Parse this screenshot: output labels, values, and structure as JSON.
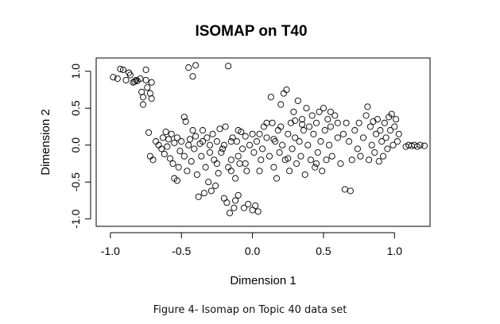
{
  "chart_data": {
    "type": "scatter",
    "title": "ISOMAP on T40",
    "xlabel": "Dimension 1",
    "ylabel": "Dimension 2",
    "xlim": [
      -1.1,
      1.25
    ],
    "ylim": [
      -1.1,
      1.18
    ],
    "xticks": [
      -1.0,
      -0.5,
      0.0,
      0.5,
      1.0
    ],
    "xtick_labels": [
      "-1.0",
      "-0.5",
      "0.0",
      "0.5",
      "1.0"
    ],
    "yticks": [
      -1.0,
      -0.5,
      0.0,
      0.5,
      1.0
    ],
    "ytick_labels": [
      "-1.0",
      "-0.5",
      "0.0",
      "0.5",
      "1.0"
    ],
    "grid": false,
    "marker": "open-circle",
    "marker_color": "#000000",
    "points": [
      [
        -0.98,
        0.92
      ],
      [
        -0.95,
        0.9
      ],
      [
        -0.93,
        1.03
      ],
      [
        -0.91,
        1.02
      ],
      [
        -0.89,
        0.88
      ],
      [
        -0.87,
        0.98
      ],
      [
        -0.86,
        0.95
      ],
      [
        -0.84,
        0.85
      ],
      [
        -0.83,
        0.86
      ],
      [
        -0.82,
        0.88
      ],
      [
        -0.81,
        0.87
      ],
      [
        -0.79,
        0.9
      ],
      [
        -0.78,
        0.72
      ],
      [
        -0.77,
        0.55
      ],
      [
        -0.77,
        0.65
      ],
      [
        -0.75,
        1.02
      ],
      [
        -0.75,
        0.88
      ],
      [
        -0.74,
        0.78
      ],
      [
        -0.72,
        0.7
      ],
      [
        -0.71,
        0.63
      ],
      [
        -0.71,
        0.85
      ],
      [
        -0.73,
        0.17
      ],
      [
        -0.72,
        -0.15
      ],
      [
        -0.7,
        -0.2
      ],
      [
        -0.68,
        0.05
      ],
      [
        -0.66,
        0.0
      ],
      [
        -0.64,
        -0.05
      ],
      [
        -0.63,
        0.1
      ],
      [
        -0.62,
        -0.12
      ],
      [
        -0.61,
        0.18
      ],
      [
        -0.6,
        -0.02
      ],
      [
        -0.59,
        0.08
      ],
      [
        -0.58,
        -0.18
      ],
      [
        -0.57,
        0.15
      ],
      [
        -0.56,
        -0.25
      ],
      [
        -0.55,
        0.03
      ],
      [
        -0.55,
        -0.45
      ],
      [
        -0.53,
        -0.48
      ],
      [
        -0.53,
        0.1
      ],
      [
        -0.52,
        -0.3
      ],
      [
        -0.51,
        -0.08
      ],
      [
        -0.5,
        0.05
      ],
      [
        -0.48,
        -0.15
      ],
      [
        -0.48,
        0.38
      ],
      [
        -0.47,
        0.32
      ],
      [
        -0.46,
        -0.35
      ],
      [
        -0.45,
        0.0
      ],
      [
        -0.44,
        0.08
      ],
      [
        -0.43,
        -0.22
      ],
      [
        -0.42,
        0.2
      ],
      [
        -0.41,
        -0.05
      ],
      [
        -0.4,
        0.12
      ],
      [
        -0.39,
        -0.4
      ],
      [
        -0.38,
        -0.7
      ],
      [
        -0.37,
        0.02
      ],
      [
        -0.36,
        -0.15
      ],
      [
        -0.35,
        0.05
      ],
      [
        -0.34,
        -0.65
      ],
      [
        -0.33,
        -0.3
      ],
      [
        -0.32,
        0.1
      ],
      [
        -0.31,
        -0.5
      ],
      [
        -0.3,
        0.0
      ],
      [
        -0.29,
        -0.62
      ],
      [
        -0.28,
        0.15
      ],
      [
        -0.27,
        -0.2
      ],
      [
        -0.26,
        -0.55
      ],
      [
        -0.25,
        0.05
      ],
      [
        -0.24,
        -0.38
      ],
      [
        -0.23,
        0.22
      ],
      [
        -0.22,
        -0.1
      ],
      [
        -0.21,
        -0.05
      ],
      [
        -0.2,
        -0.72
      ],
      [
        -0.19,
        0.25
      ],
      [
        -0.18,
        -0.78
      ],
      [
        -0.17,
        -0.3
      ],
      [
        -0.16,
        -0.92
      ],
      [
        -0.15,
        -0.2
      ],
      [
        -0.14,
        0.1
      ],
      [
        -0.13,
        -0.85
      ],
      [
        -0.12,
        -0.45
      ],
      [
        -0.11,
        0.05
      ],
      [
        -0.1,
        -0.15
      ],
      [
        -0.09,
        -0.25
      ],
      [
        -0.08,
        0.18
      ],
      [
        -0.07,
        -0.05
      ],
      [
        -0.06,
        -0.85
      ],
      [
        -0.05,
        0.12
      ],
      [
        -0.04,
        -0.35
      ],
      [
        -0.03,
        -0.8
      ],
      [
        -0.02,
        0.0
      ],
      [
        0.0,
        -0.88
      ],
      [
        0.01,
        -0.1
      ],
      [
        0.02,
        -0.82
      ],
      [
        0.03,
        0.05
      ],
      [
        0.04,
        -0.9
      ],
      [
        0.05,
        0.15
      ],
      [
        0.06,
        -0.2
      ],
      [
        0.07,
        -0.05
      ],
      [
        -0.45,
        1.05
      ],
      [
        -0.42,
        0.93
      ],
      [
        -0.4,
        1.08
      ],
      [
        -0.17,
        1.07
      ],
      [
        -0.15,
        0.05
      ],
      [
        -0.12,
        -0.75
      ],
      [
        -0.1,
        -0.68
      ],
      [
        0.08,
        0.25
      ],
      [
        0.1,
        0.1
      ],
      [
        0.12,
        -0.15
      ],
      [
        0.13,
        0.65
      ],
      [
        0.14,
        0.3
      ],
      [
        0.15,
        -0.3
      ],
      [
        0.16,
        0.05
      ],
      [
        0.17,
        -0.45
      ],
      [
        0.18,
        0.2
      ],
      [
        0.19,
        -0.1
      ],
      [
        0.2,
        0.55
      ],
      [
        0.21,
        0.0
      ],
      [
        0.22,
        0.7
      ],
      [
        0.23,
        -0.2
      ],
      [
        0.24,
        0.75
      ],
      [
        0.25,
        0.15
      ],
      [
        0.26,
        -0.35
      ],
      [
        0.27,
        0.3
      ],
      [
        0.28,
        -0.05
      ],
      [
        0.29,
        0.45
      ],
      [
        0.3,
        0.1
      ],
      [
        0.31,
        -0.25
      ],
      [
        0.32,
        0.6
      ],
      [
        0.33,
        0.05
      ],
      [
        0.34,
        -0.15
      ],
      [
        0.35,
        0.35
      ],
      [
        0.36,
        0.2
      ],
      [
        0.37,
        -0.4
      ],
      [
        0.38,
        0.5
      ],
      [
        0.39,
        0.0
      ],
      [
        0.4,
        0.25
      ],
      [
        0.41,
        -0.2
      ],
      [
        0.42,
        0.4
      ],
      [
        0.43,
        0.15
      ],
      [
        0.44,
        -0.3
      ],
      [
        0.45,
        0.3
      ],
      [
        0.46,
        -0.1
      ],
      [
        0.47,
        0.45
      ],
      [
        0.48,
        0.05
      ],
      [
        0.49,
        -0.35
      ],
      [
        0.5,
        0.5
      ],
      [
        0.51,
        0.2
      ],
      [
        0.52,
        -0.2
      ],
      [
        0.53,
        0.35
      ],
      [
        0.54,
        0.0
      ],
      [
        0.55,
        0.25
      ],
      [
        0.56,
        -0.15
      ],
      [
        0.58,
        0.4
      ],
      [
        0.6,
        0.1
      ],
      [
        0.62,
        -0.25
      ],
      [
        0.64,
        0.15
      ],
      [
        0.65,
        -0.6
      ],
      [
        0.66,
        0.3
      ],
      [
        0.68,
        0.05
      ],
      [
        0.69,
        -0.62
      ],
      [
        0.7,
        -0.2
      ],
      [
        0.72,
        0.2
      ],
      [
        0.74,
        -0.05
      ],
      [
        0.75,
        0.3
      ],
      [
        0.76,
        -0.15
      ],
      [
        0.78,
        0.1
      ],
      [
        0.8,
        0.4
      ],
      [
        0.81,
        0.52
      ],
      [
        0.82,
        -0.2
      ],
      [
        0.83,
        0.25
      ],
      [
        0.84,
        0.0
      ],
      [
        0.85,
        0.32
      ],
      [
        0.86,
        -0.1
      ],
      [
        0.87,
        0.15
      ],
      [
        0.88,
        0.35
      ],
      [
        0.89,
        -0.22
      ],
      [
        0.9,
        0.2
      ],
      [
        0.91,
        0.05
      ],
      [
        0.92,
        -0.15
      ],
      [
        0.93,
        0.3
      ],
      [
        0.94,
        0.1
      ],
      [
        0.95,
        -0.05
      ],
      [
        0.96,
        0.38
      ],
      [
        0.97,
        0.2
      ],
      [
        0.98,
        0.42
      ],
      [
        0.99,
        0.0
      ],
      [
        1.0,
        0.25
      ],
      [
        1.01,
        0.35
      ],
      [
        1.02,
        0.05
      ],
      [
        1.03,
        0.15
      ],
      [
        1.08,
        -0.02
      ],
      [
        1.1,
        0.0
      ],
      [
        1.12,
        -0.01
      ],
      [
        1.14,
        0.0
      ],
      [
        1.16,
        -0.02
      ],
      [
        1.18,
        0.0
      ],
      [
        1.21,
        -0.01
      ],
      [
        0.6,
        0.3
      ],
      [
        0.55,
        0.45
      ],
      [
        0.45,
        -0.25
      ],
      [
        0.35,
        0.28
      ],
      [
        0.3,
        0.33
      ],
      [
        0.25,
        -0.18
      ],
      [
        0.2,
        0.25
      ],
      [
        0.15,
        0.08
      ],
      [
        -0.35,
        0.2
      ],
      [
        -0.3,
        -0.1
      ],
      [
        -0.25,
        -0.25
      ],
      [
        -0.2,
        0.0
      ],
      [
        -0.15,
        -0.35
      ],
      [
        -0.1,
        0.2
      ],
      [
        -0.05,
        -0.25
      ],
      [
        0.0,
        0.15
      ],
      [
        0.05,
        -0.35
      ],
      [
        0.1,
        0.3
      ]
    ]
  },
  "caption": "Figure 4- Isomap on Topic 40 data set"
}
